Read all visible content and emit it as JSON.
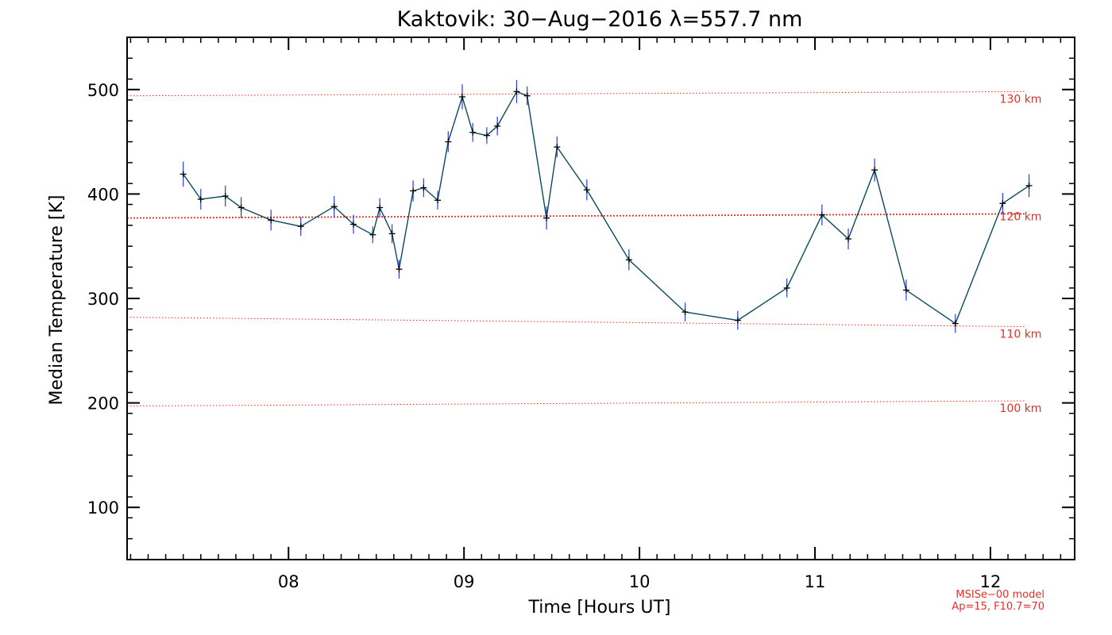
{
  "chart_data": {
    "type": "line",
    "title": "Kaktovik: 30−Aug−2016 λ=557.7 nm",
    "xlabel": "Time [Hours UT]",
    "ylabel": "Median Temperature [K]",
    "xlim": [
      7.08,
      12.48
    ],
    "ylim": [
      50,
      550
    ],
    "xticks": [
      8,
      9,
      10,
      11,
      12
    ],
    "xtick_labels": [
      "08",
      "09",
      "10",
      "11",
      "12"
    ],
    "yticks": [
      100,
      200,
      300,
      400,
      500
    ],
    "ytick_labels": [
      "100",
      "200",
      "300",
      "400",
      "500"
    ],
    "grid": false,
    "series": [
      {
        "x": [
          7.4,
          7.5,
          7.64,
          7.73,
          7.9,
          8.07,
          8.26,
          8.37,
          8.48,
          8.52,
          8.59,
          8.63,
          8.71,
          8.77,
          8.85,
          8.91,
          8.99,
          9.05,
          9.13,
          9.19,
          9.3,
          9.36,
          9.47,
          9.53,
          9.7,
          9.94,
          10.26,
          10.56,
          10.84,
          11.04,
          11.19,
          11.34,
          11.52,
          11.8,
          12.07,
          12.22
        ],
        "y": [
          419,
          395,
          398,
          387,
          375,
          369,
          388,
          371,
          361,
          387,
          362,
          328,
          403,
          406,
          394,
          450,
          493,
          459,
          456,
          465,
          498,
          494,
          377,
          445,
          404,
          337,
          287,
          279,
          310,
          380,
          357,
          423,
          308,
          276,
          391,
          408
        ],
        "err": [
          12,
          10,
          10,
          10,
          10,
          9,
          10,
          9,
          8,
          9,
          9,
          9,
          10,
          9,
          9,
          10,
          12,
          9,
          8,
          9,
          11,
          9,
          11,
          10,
          10,
          10,
          9,
          9,
          9,
          10,
          10,
          11,
          10,
          9,
          10,
          11
        ]
      }
    ],
    "model_lines": [
      {
        "label": "130 km",
        "y_start": 494,
        "y_end": 498
      },
      {
        "label": "120 km",
        "y_start": 377,
        "y_end": 381
      },
      {
        "label": "110 km",
        "y_start": 282,
        "y_end": 273
      },
      {
        "label": "100 km",
        "y_start": 197,
        "y_end": 202
      }
    ],
    "annotations": [
      "MSISe−00 model",
      "Ap=15, F10.7=70"
    ],
    "colors": {
      "line": "#0b4a5e",
      "error_bar": "#2b3cd6",
      "marker": "#000000",
      "model_line": "#e0302a"
    }
  }
}
